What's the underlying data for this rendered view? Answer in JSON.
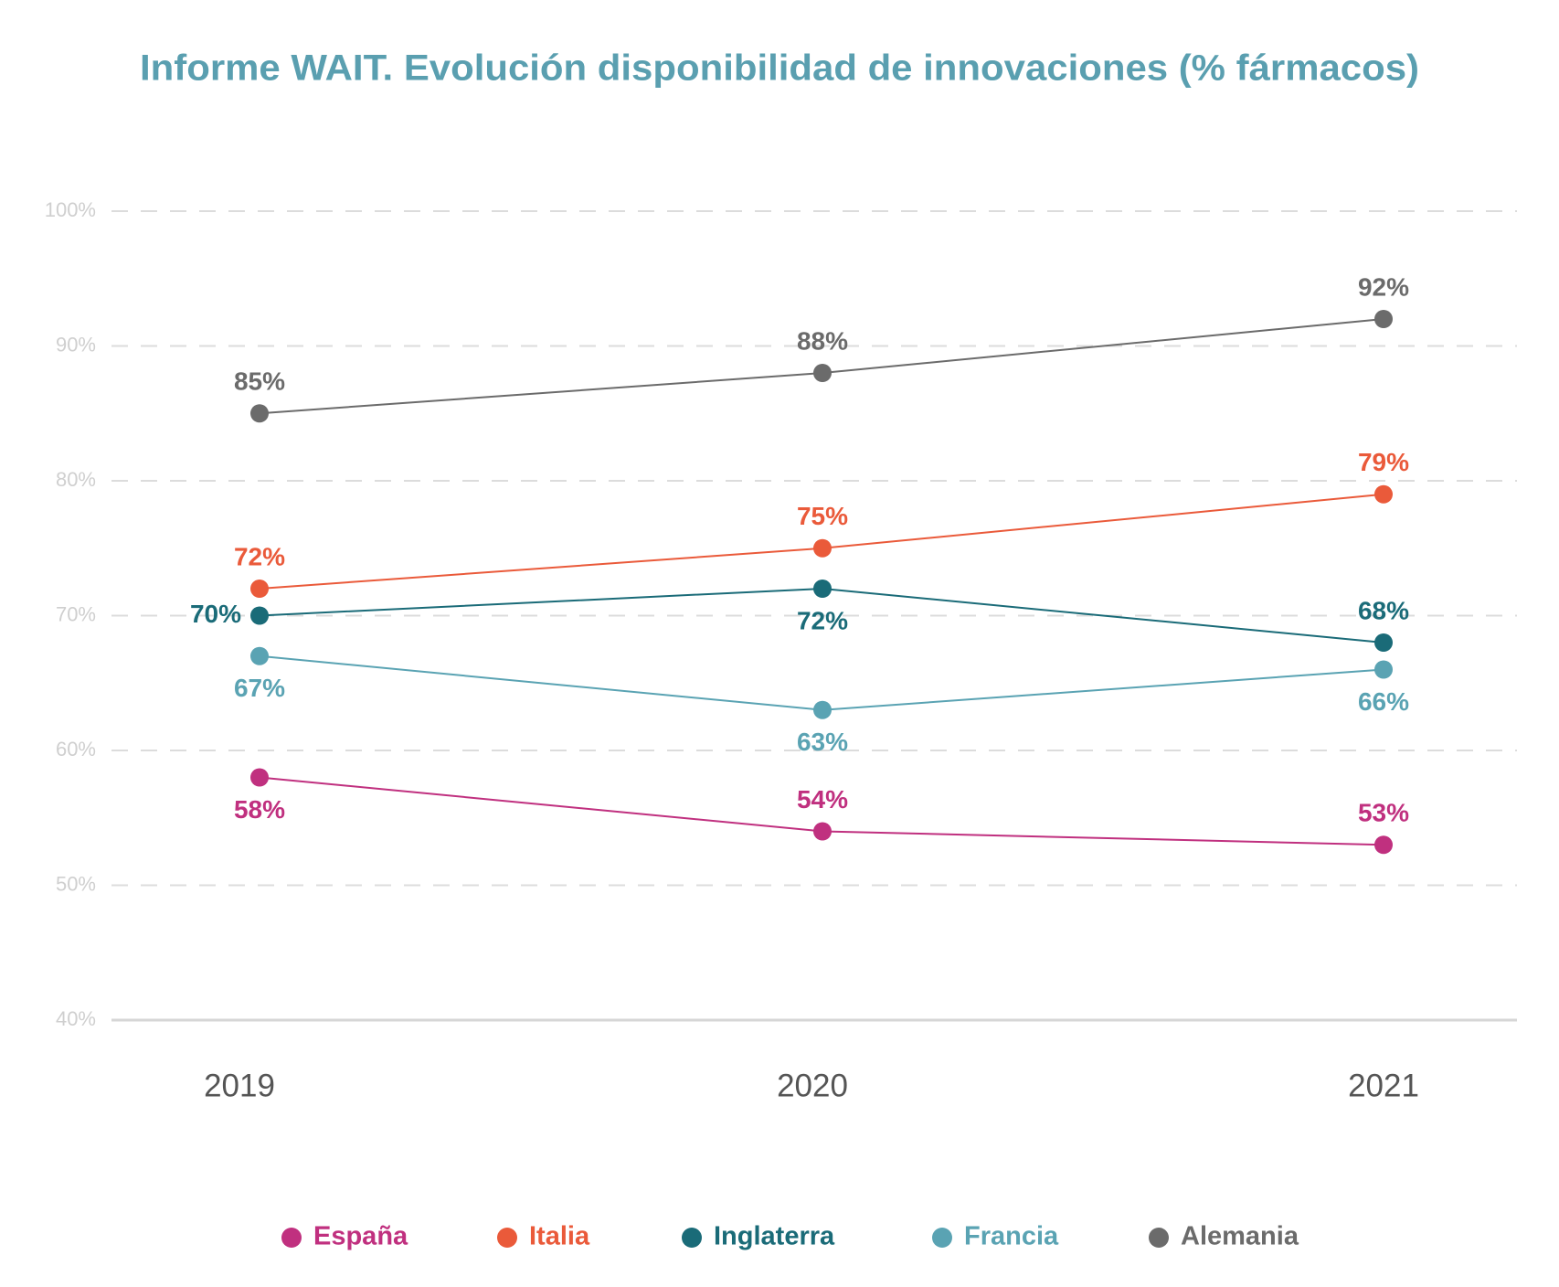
{
  "chart_data": {
    "type": "line",
    "title": "Informe WAIT. Evolución disponibilidad de innovaciones (% fármacos)",
    "categories": [
      "2019",
      "2020",
      "2021"
    ],
    "ylim": [
      40,
      100
    ],
    "yticks": [
      {
        "value": 40,
        "label": "40%"
      },
      {
        "value": 50,
        "label": "50%"
      },
      {
        "value": 60,
        "label": "60%"
      },
      {
        "value": 70,
        "label": "70%"
      },
      {
        "value": 80,
        "label": "80%"
      },
      {
        "value": 90,
        "label": "90%"
      },
      {
        "value": 100,
        "label": "100%"
      }
    ],
    "grid": true,
    "legend": "bottom",
    "series": [
      {
        "name": "España",
        "color": "#c0307f",
        "values": [
          58,
          54,
          53
        ],
        "value_labels": [
          "58%",
          "54%",
          "53%"
        ]
      },
      {
        "name": "Italia",
        "color": "#ea5a3a",
        "values": [
          72,
          75,
          79
        ],
        "value_labels": [
          "72%",
          "75%",
          "79%"
        ]
      },
      {
        "name": "Inglaterra",
        "color": "#1a6b78",
        "values": [
          70,
          72,
          68
        ],
        "value_labels": [
          "70%",
          "72%",
          "68%"
        ]
      },
      {
        "name": "Francia",
        "color": "#5aa3b3",
        "values": [
          67,
          63,
          66
        ],
        "value_labels": [
          "67%",
          "63%",
          "66%"
        ]
      },
      {
        "name": "Alemania",
        "color": "#6b6b6b",
        "values": [
          85,
          88,
          92
        ],
        "value_labels": [
          "85%",
          "88%",
          "92%"
        ]
      }
    ]
  }
}
